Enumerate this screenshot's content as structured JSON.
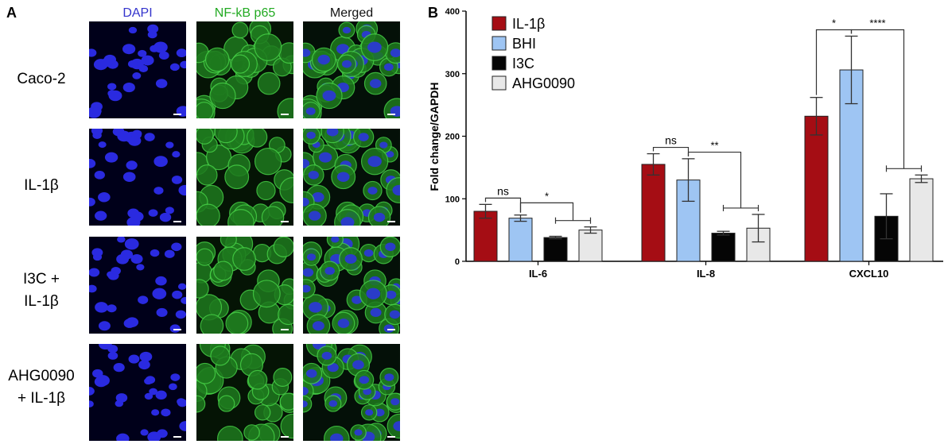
{
  "panel_a": {
    "letter": "A",
    "columns": [
      {
        "label": "DAPI",
        "color": "#3333cc"
      },
      {
        "label": "NF-kB p65",
        "color": "#22aa22"
      },
      {
        "label": "Merged",
        "color": "#111111"
      }
    ],
    "rows": [
      {
        "label_lines": [
          "Caco-2"
        ]
      },
      {
        "label_lines": [
          "IL-1β"
        ]
      },
      {
        "label_lines": [
          "I3C +",
          "IL-1β"
        ]
      },
      {
        "label_lines": [
          "AHG0090",
          "+ IL-1β"
        ]
      }
    ]
  },
  "panel_b": {
    "letter": "B"
  },
  "chart_data": {
    "type": "bar",
    "title": "",
    "xlabel": "",
    "ylabel": "Fold change/GAPDH",
    "ylim": [
      0,
      400
    ],
    "yticks": [
      0,
      100,
      200,
      300,
      400
    ],
    "categories": [
      "IL-6",
      "IL-8",
      "CXCL10"
    ],
    "legend_position": "top-left",
    "series": [
      {
        "name": "IL-1β",
        "color": "#a50d14",
        "values": [
          80,
          155,
          232
        ],
        "errors": [
          11,
          17,
          30
        ]
      },
      {
        "name": "BHI",
        "color": "#9ec5f3",
        "values": [
          69,
          130,
          306
        ],
        "errors": [
          5,
          34,
          54
        ]
      },
      {
        "name": "I3C",
        "color": "#050505",
        "values": [
          38,
          45,
          72
        ],
        "errors": [
          2,
          3,
          36
        ]
      },
      {
        "name": "AHG0090",
        "color": "#e8e8e8",
        "values": [
          50,
          53,
          132
        ],
        "errors": [
          5,
          22,
          6
        ]
      }
    ],
    "significance": [
      {
        "category": "IL-6",
        "label": "ns"
      },
      {
        "category": "IL-6",
        "label": "*"
      },
      {
        "category": "IL-8",
        "label": "ns"
      },
      {
        "category": "IL-8",
        "label": "**"
      },
      {
        "category": "CXCL10",
        "label": "*"
      },
      {
        "category": "CXCL10",
        "label": "****"
      }
    ]
  }
}
